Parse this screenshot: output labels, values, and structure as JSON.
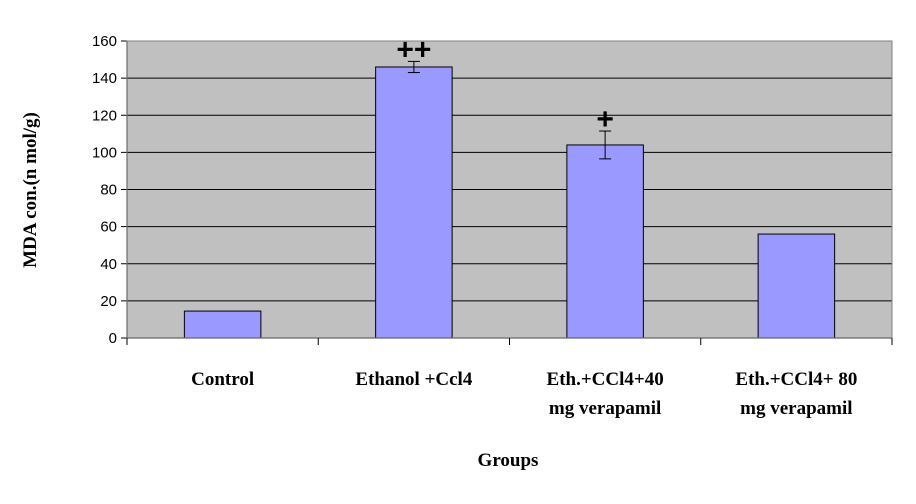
{
  "chart_data": {
    "type": "bar",
    "categories": [
      [
        "Control"
      ],
      [
        "Ethanol +Ccl4"
      ],
      [
        "Eth.+CCl4+40",
        "mg verapamil"
      ],
      [
        "Eth.+CCl4+ 80",
        "mg verapamil"
      ]
    ],
    "values": [
      14.5,
      146,
      104,
      56
    ],
    "error": [
      null,
      3,
      7.5,
      null
    ],
    "annotations": [
      "",
      "++",
      "+",
      ""
    ],
    "xlabel": "Groups",
    "ylabel": "MDA con.(n mol/g)",
    "ylim": [
      0,
      160
    ],
    "yticks": [
      0,
      20,
      40,
      60,
      80,
      100,
      120,
      140,
      160
    ],
    "grid": true,
    "colors": {
      "plot_bg": "#c0c0c0",
      "bar_fill": "#9999ff",
      "bar_edge": "#000000",
      "grid": "#000000"
    }
  }
}
